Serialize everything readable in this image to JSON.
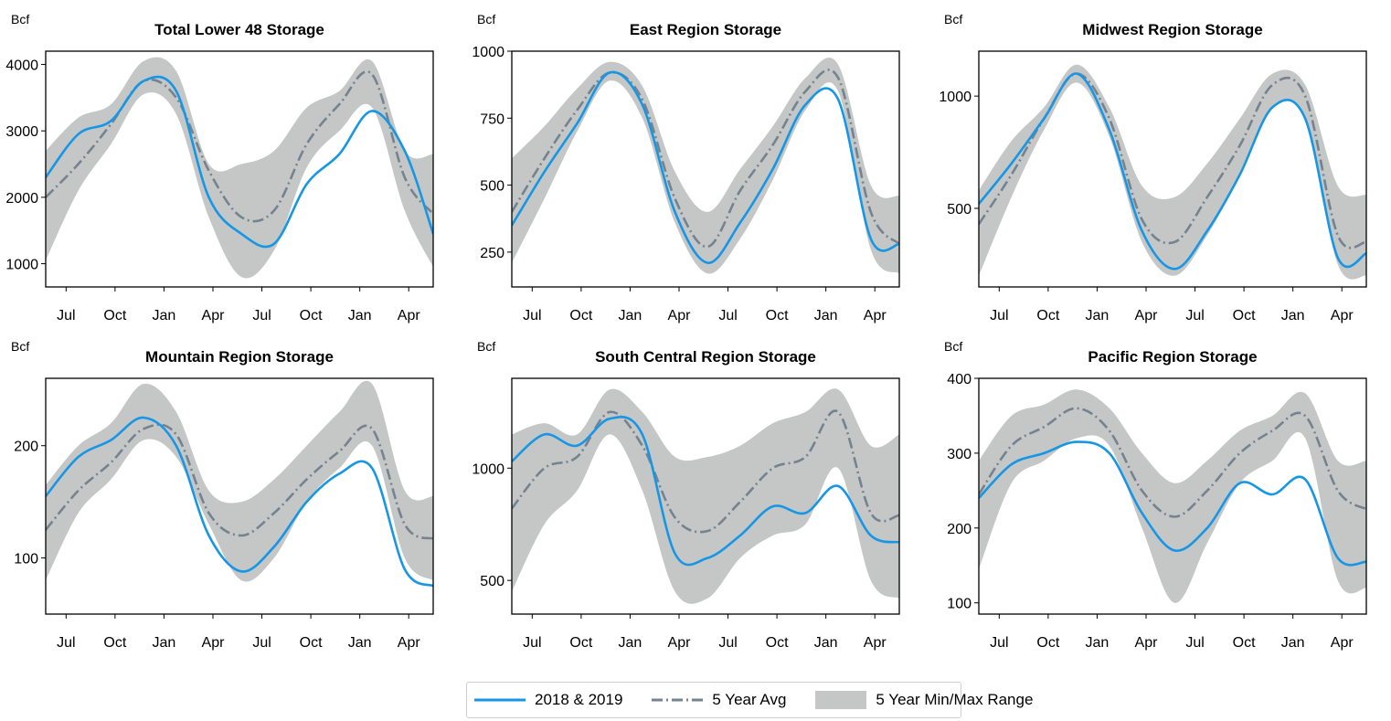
{
  "colors": {
    "actual": "#1796e6",
    "avg": "#74838f",
    "band": "#c4c7c6"
  },
  "legend": {
    "actual_label": "2018 & 2019",
    "avg_label": "5 Year Avg",
    "band_label": "5 Year Min/Max Range",
    "placement": "bottom-center"
  },
  "chart_data": [
    {
      "type": "line",
      "title": "Total Lower 48 Storage",
      "ylabel": "Bcf",
      "xlim": [
        0,
        95
      ],
      "ylim": [
        650,
        4200
      ],
      "yticks": [
        1000,
        2000,
        3000,
        4000
      ],
      "x": [
        0,
        8,
        16,
        24,
        32,
        40,
        48,
        56,
        64,
        72,
        80,
        88,
        95
      ],
      "series": [
        {
          "name": "2018 & 2019",
          "values": [
            2300,
            2950,
            3150,
            3750,
            3600,
            2000,
            1450,
            1300,
            2200,
            2650,
            3300,
            2700,
            1450
          ]
        },
        {
          "name": "5 Year Avg",
          "values": [
            2000,
            2500,
            3100,
            3750,
            3500,
            2400,
            1700,
            1800,
            2800,
            3400,
            3850,
            2300,
            1750
          ]
        },
        {
          "name": "5 Year Max",
          "values": [
            2700,
            3200,
            3400,
            4050,
            3900,
            2500,
            2500,
            2700,
            3350,
            3600,
            4050,
            2700,
            2650
          ]
        },
        {
          "name": "5 Year Min",
          "values": [
            1050,
            2100,
            2800,
            3550,
            3250,
            1700,
            800,
            1200,
            2450,
            3000,
            3350,
            1800,
            950
          ]
        }
      ]
    },
    {
      "type": "line",
      "title": "East Region Storage",
      "ylabel": "Bcf",
      "xlim": [
        0,
        95
      ],
      "ylim": [
        120,
        1000
      ],
      "yticks": [
        250,
        500,
        750,
        1000
      ],
      "x": [
        0,
        8,
        16,
        24,
        32,
        40,
        48,
        56,
        64,
        72,
        80,
        88,
        95
      ],
      "series": [
        {
          "name": "2018 & 2019",
          "values": [
            350,
            550,
            730,
            920,
            800,
            400,
            210,
            360,
            560,
            800,
            820,
            300,
            280
          ]
        },
        {
          "name": "5 Year Avg",
          "values": [
            400,
            600,
            780,
            920,
            820,
            450,
            270,
            480,
            650,
            850,
            900,
            400,
            280
          ]
        },
        {
          "name": "5 Year Max",
          "values": [
            600,
            720,
            860,
            960,
            870,
            550,
            400,
            560,
            720,
            900,
            950,
            500,
            460
          ]
        },
        {
          "name": "5 Year Min",
          "values": [
            210,
            450,
            700,
            890,
            750,
            360,
            170,
            300,
            520,
            780,
            850,
            260,
            170
          ]
        }
      ]
    },
    {
      "type": "line",
      "title": "Midwest Region Storage",
      "ylabel": "Bcf",
      "xlim": [
        0,
        95
      ],
      "ylim": [
        150,
        1200
      ],
      "yticks": [
        500,
        1000
      ],
      "x": [
        0,
        8,
        16,
        24,
        32,
        40,
        48,
        56,
        64,
        72,
        80,
        88,
        95
      ],
      "series": [
        {
          "name": "2018 & 2019",
          "values": [
            520,
            700,
            900,
            1100,
            850,
            400,
            230,
            400,
            650,
            950,
            900,
            280,
            300
          ]
        },
        {
          "name": "5 Year Avg",
          "values": [
            430,
            650,
            900,
            1100,
            900,
            450,
            350,
            550,
            780,
            1050,
            1000,
            380,
            350
          ]
        },
        {
          "name": "5 Year Max",
          "values": [
            580,
            800,
            950,
            1140,
            950,
            600,
            550,
            700,
            900,
            1100,
            1050,
            600,
            560
          ]
        },
        {
          "name": "5 Year Min",
          "values": [
            200,
            550,
            850,
            1060,
            820,
            350,
            200,
            380,
            650,
            950,
            900,
            250,
            200
          ]
        }
      ]
    },
    {
      "type": "line",
      "title": "Mountain Region Storage",
      "ylabel": "Bcf",
      "xlim": [
        0,
        95
      ],
      "ylim": [
        50,
        260
      ],
      "yticks": [
        100,
        200
      ],
      "x": [
        0,
        8,
        16,
        24,
        32,
        40,
        48,
        56,
        64,
        72,
        80,
        88,
        95
      ],
      "series": [
        {
          "name": "2018 & 2019",
          "values": [
            155,
            190,
            205,
            225,
            200,
            120,
            88,
            110,
            150,
            175,
            180,
            90,
            75
          ]
        },
        {
          "name": "5 Year Avg",
          "values": [
            125,
            160,
            185,
            215,
            210,
            140,
            120,
            140,
            170,
            195,
            215,
            130,
            117
          ]
        },
        {
          "name": "5 Year Max",
          "values": [
            165,
            200,
            220,
            255,
            230,
            160,
            150,
            170,
            200,
            230,
            255,
            160,
            155
          ]
        },
        {
          "name": "5 Year Min",
          "values": [
            80,
            140,
            170,
            205,
            190,
            130,
            80,
            100,
            150,
            180,
            200,
            100,
            80
          ]
        }
      ]
    },
    {
      "type": "line",
      "title": "South Central Region Storage",
      "ylabel": "Bcf",
      "xlim": [
        0,
        95
      ],
      "ylim": [
        350,
        1400
      ],
      "yticks": [
        500,
        1000
      ],
      "x": [
        0,
        8,
        16,
        24,
        32,
        40,
        48,
        56,
        64,
        72,
        80,
        88,
        95
      ],
      "series": [
        {
          "name": "2018 & 2019",
          "values": [
            1030,
            1150,
            1100,
            1220,
            1150,
            620,
            600,
            700,
            830,
            800,
            920,
            700,
            670
          ]
        },
        {
          "name": "5 Year Avg",
          "values": [
            820,
            1000,
            1050,
            1250,
            1100,
            780,
            720,
            850,
            1000,
            1050,
            1250,
            800,
            790
          ]
        },
        {
          "name": "5 Year Max",
          "values": [
            1150,
            1200,
            1150,
            1350,
            1250,
            1050,
            1050,
            1100,
            1200,
            1250,
            1350,
            1100,
            1150
          ]
        },
        {
          "name": "5 Year Min",
          "values": [
            450,
            750,
            900,
            1150,
            900,
            450,
            420,
            600,
            700,
            750,
            1000,
            500,
            420
          ]
        }
      ]
    },
    {
      "type": "line",
      "title": "Pacific Region Storage",
      "ylabel": "Bcf",
      "xlim": [
        0,
        95
      ],
      "ylim": [
        85,
        400
      ],
      "yticks": [
        100,
        200,
        300,
        400
      ],
      "x": [
        0,
        8,
        16,
        24,
        32,
        40,
        48,
        56,
        64,
        72,
        80,
        88,
        95
      ],
      "series": [
        {
          "name": "2018 & 2019",
          "values": [
            240,
            285,
            300,
            315,
            300,
            220,
            170,
            200,
            260,
            245,
            265,
            160,
            155
          ]
        },
        {
          "name": "5 Year Avg",
          "values": [
            245,
            310,
            335,
            360,
            330,
            250,
            215,
            250,
            300,
            330,
            350,
            250,
            225
          ]
        },
        {
          "name": "5 Year Max",
          "values": [
            290,
            350,
            365,
            385,
            360,
            300,
            260,
            290,
            330,
            350,
            380,
            290,
            290
          ]
        },
        {
          "name": "5 Year Min",
          "values": [
            145,
            260,
            290,
            320,
            310,
            200,
            100,
            180,
            260,
            290,
            320,
            130,
            120
          ]
        }
      ]
    }
  ],
  "x_ticks": [
    {
      "label": "Jul",
      "x": 5
    },
    {
      "label": "Oct",
      "x": 17
    },
    {
      "label": "Jan",
      "x": 29
    },
    {
      "label": "Apr",
      "x": 41
    },
    {
      "label": "Jul",
      "x": 53
    },
    {
      "label": "Oct",
      "x": 65
    },
    {
      "label": "Jan",
      "x": 77
    },
    {
      "label": "Apr",
      "x": 89
    }
  ]
}
